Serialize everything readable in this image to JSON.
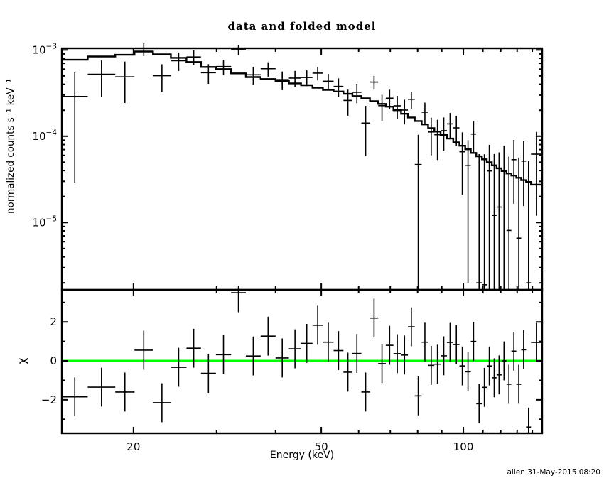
{
  "window": {
    "background": "#ffffff",
    "foreground": "#000000"
  },
  "title": "data and folded model",
  "credit": "allen 31-May-2015 08:20",
  "colors": {
    "data": "#000000",
    "model": "#000000",
    "zero_line": "#00ff00"
  },
  "chart_data": [
    {
      "panel": "spectrum",
      "type": "scatter",
      "subtype": "errorbar-with-histogram-model",
      "title": "data and folded model",
      "xlabel": "",
      "ylabel": "normalized counts s⁻¹ keV⁻¹",
      "xscale": "log",
      "yscale": "log",
      "xlim": [
        14.1,
        146.9
      ],
      "ylim": [
        1.66e-06,
        0.001045
      ],
      "grid": false,
      "legend": false,
      "xticks_major": [
        {
          "value": 20,
          "label": "20"
        },
        {
          "value": 50,
          "label": "50"
        },
        {
          "value": 100,
          "label": "100"
        }
      ],
      "xticks_minor": [
        30,
        40,
        60,
        70,
        80,
        90,
        110,
        120,
        130,
        140
      ],
      "yticks_major": [
        {
          "value": 0.001,
          "base": "10",
          "exp": "−3"
        },
        {
          "value": 0.0001,
          "base": "10",
          "exp": "−4"
        },
        {
          "value": 1e-05,
          "base": "10",
          "exp": "−5"
        }
      ],
      "yticks_minor_mantissas": [
        2,
        3,
        4,
        5,
        6,
        7,
        8,
        9
      ],
      "bin_edges_keV": [
        14.1,
        16.0,
        18.3,
        20.1,
        22.0,
        24.0,
        25.9,
        27.8,
        29.9,
        32.2,
        34.6,
        37.2,
        40.0,
        42.7,
        45.3,
        47.9,
        50.4,
        53.1,
        55.7,
        58.2,
        60.8,
        63.4,
        66.0,
        68.5,
        71.1,
        73.8,
        76.3,
        78.9,
        81.6,
        84.2,
        86.8,
        89.5,
        92.3,
        95.2,
        98.1,
        100.9,
        103.7,
        106.5,
        109.5,
        112.1,
        114.9,
        117.6,
        120.5,
        123.4,
        126.4,
        129.5,
        132.6,
        135.8,
        139.1,
        146.9
      ],
      "series": [
        {
          "name": "data",
          "rate": [
            0.000289,
            0.000523,
            0.000488,
            0.00104,
            0.000503,
            0.000751,
            0.000829,
            0.000545,
            0.000642,
            0.001008,
            0.000515,
            0.000606,
            0.000452,
            0.000472,
            0.00048,
            0.000539,
            0.000434,
            0.000378,
            0.00026,
            0.000323,
            0.000142,
            0.000424,
            0.000226,
            0.000276,
            0.000225,
            0.000201,
            0.000268,
            4.7e-05,
            0.00019,
            0.000112,
            0.000104,
            0.000116,
            0.000139,
            0.000125,
            6.6e-05,
            4.6e-05,
            0.000106,
            2e-06,
            1.9e-06,
            3.96e-05,
            1.21e-05,
            1.51e-05,
            3.95e-05,
            8.1e-06,
            5.35e-05,
            6.6e-06,
            5.15e-05,
            2e-06,
            6.2e-05
          ],
          "err": [
            0.00026,
            0.000235,
            0.000245,
            0.00019,
            0.00018,
            0.00018,
            0.00016,
            0.00014,
            0.00013,
            0.000135,
            0.00012,
            0.000115,
            0.00011,
            0.0001,
            0.0001,
            9.5e-05,
            9.3e-05,
            9e-05,
            8.7e-05,
            8.2e-05,
            8.3e-05,
            7.7e-05,
            7.6e-05,
            7e-05,
            6.8e-05,
            6.4e-05,
            5.9e-05,
            5.7e-05,
            5.5e-05,
            5.2e-05,
            5.1e-05,
            4.9e-05,
            4.7e-05,
            4.7e-05,
            4.5e-05,
            4.4e-05,
            4.2e-05,
            6e-05,
            6e-05,
            4e-05,
            5e-05,
            5e-05,
            3.8e-05,
            5e-05,
            3.7e-05,
            5e-05,
            3.6e-05,
            5e-05,
            5e-05
          ]
        },
        {
          "name": "folded model",
          "rate": [
            0.00077,
            0.00084,
            0.00088,
            0.00096,
            0.00089,
            0.00081,
            0.000725,
            0.000635,
            0.0006,
            0.000535,
            0.000485,
            0.00046,
            0.000435,
            0.00041,
            0.00039,
            0.000365,
            0.000345,
            0.00033,
            0.00031,
            0.000292,
            0.000275,
            0.000255,
            0.000237,
            0.00022,
            0.0002,
            0.000182,
            0.000165,
            0.00015,
            0.000137,
            0.000124,
            0.000113,
            0.000103,
            9.4e-05,
            8.5e-05,
            7.75e-05,
            7.05e-05,
            6.4e-05,
            5.85e-05,
            5.4e-05,
            5e-05,
            4.6e-05,
            4.25e-05,
            3.95e-05,
            3.7e-05,
            3.5e-05,
            3.3e-05,
            3.1e-05,
            2.95e-05,
            2.75e-05
          ]
        }
      ]
    },
    {
      "panel": "residuals",
      "type": "scatter",
      "subtype": "delchi",
      "xlabel": "Energy (keV)",
      "ylabel": "χ",
      "xscale": "log",
      "ylim": [
        -3.72,
        3.65
      ],
      "grid": false,
      "yticks_major": [
        {
          "value": -2,
          "label": "−2"
        },
        {
          "value": 0,
          "label": "0"
        },
        {
          "value": 2,
          "label": "2"
        }
      ],
      "yticks_minor": [
        -3,
        -1,
        1,
        3
      ],
      "zero_line": {
        "value": 0,
        "color": "#00ff00"
      },
      "chi": [
        -1.85,
        -1.35,
        -1.6,
        0.55,
        -2.15,
        -0.33,
        0.65,
        -0.64,
        0.32,
        3.5,
        0.25,
        1.27,
        0.15,
        0.62,
        0.9,
        1.83,
        0.96,
        0.53,
        -0.58,
        0.38,
        -1.6,
        2.2,
        -0.14,
        0.8,
        0.37,
        0.3,
        1.75,
        -1.8,
        0.96,
        -0.23,
        -0.17,
        0.26,
        0.95,
        0.84,
        -0.26,
        -0.56,
        1.0,
        -2.2,
        -1.36,
        -0.26,
        -0.87,
        -0.72,
        0.0,
        -1.2,
        0.5,
        -1.2,
        0.57,
        -3.4,
        0.95
      ],
      "chi_err": 1
    }
  ]
}
